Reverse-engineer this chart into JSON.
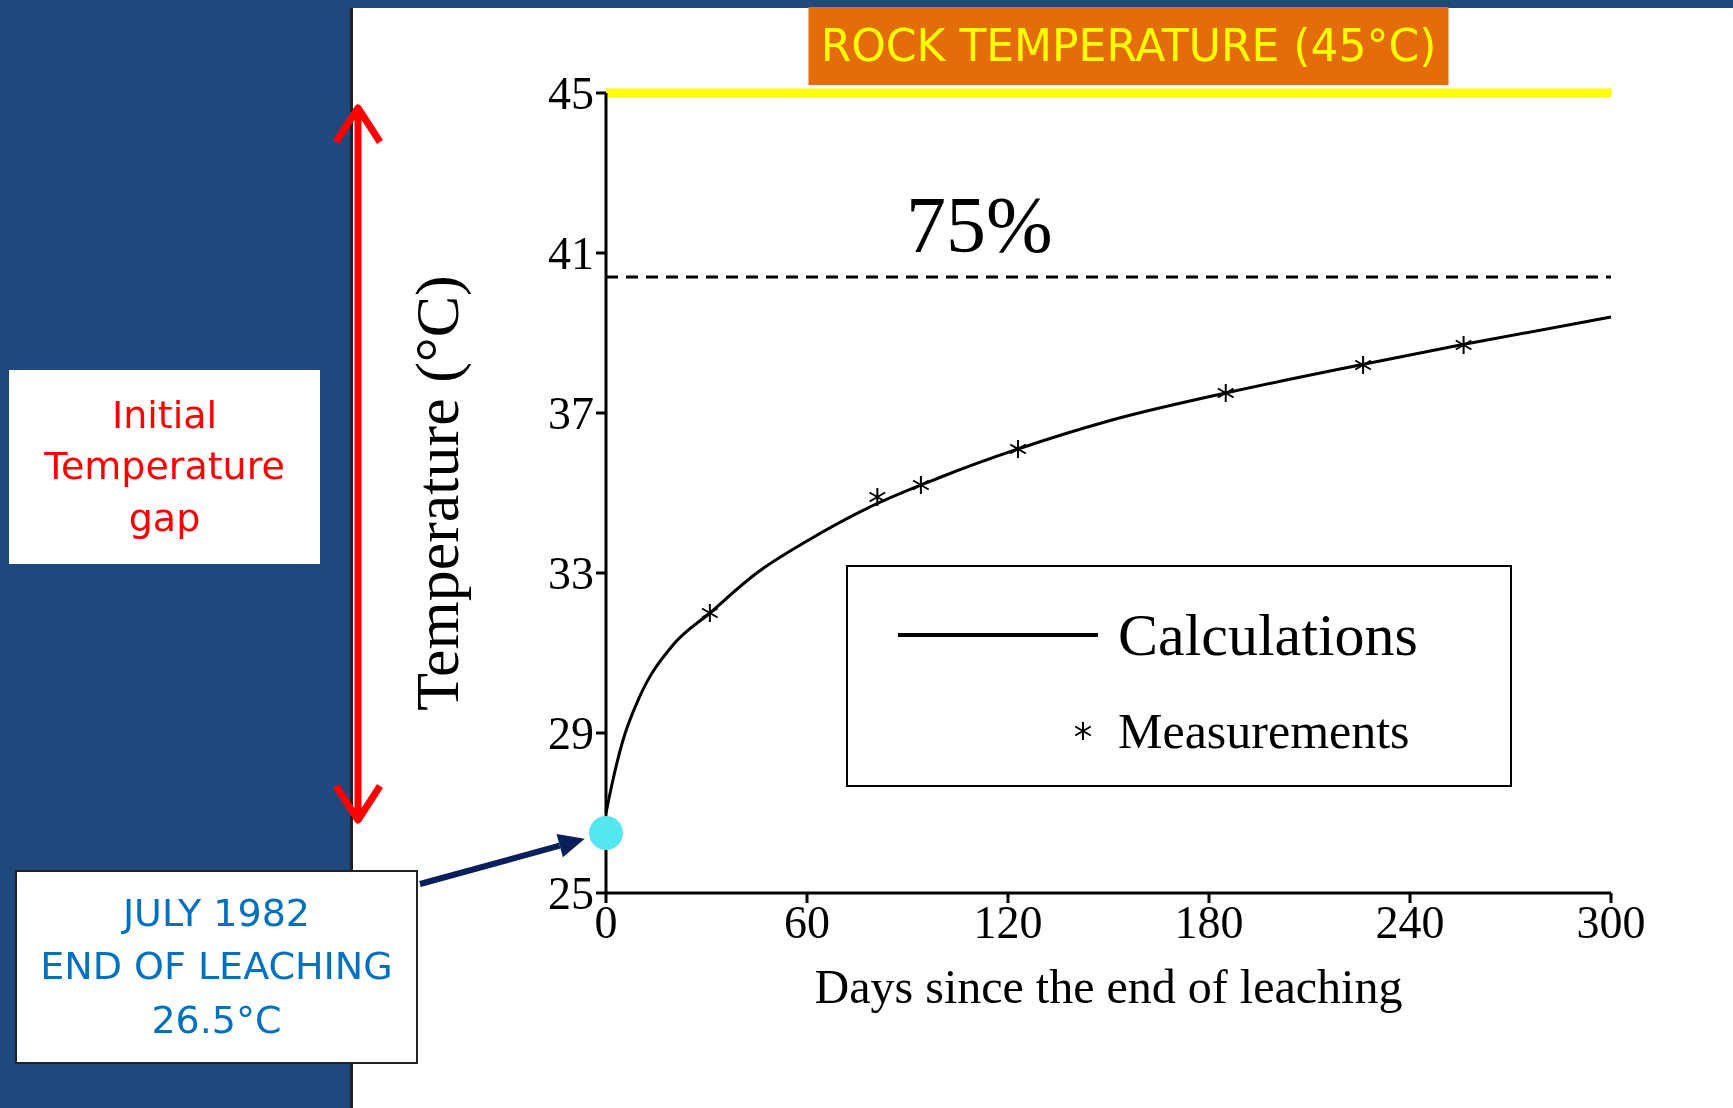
{
  "chart_data": {
    "type": "line",
    "xlabel": "Days since the end of leaching",
    "ylabel": "Temperature (°C)",
    "xlim": [
      0,
      300
    ],
    "xticks": [
      0,
      60,
      120,
      180,
      240,
      300
    ],
    "ylim": [
      25,
      45
    ],
    "yticks": [
      25,
      29,
      33,
      37,
      41,
      45
    ],
    "grid": false,
    "legend": "bottom right",
    "series": [
      {
        "name": "Calculations",
        "type": "line",
        "color": "#000000",
        "marker": "none",
        "line_style": "solid",
        "x": [
          0,
          2,
          5,
          10,
          20,
          31,
          45,
          60,
          80,
          100,
          123,
          150,
          185,
          225,
          255,
          300
        ],
        "values": [
          27.0,
          27.8,
          28.8,
          29.9,
          31.2,
          32.0,
          33.0,
          33.8,
          34.7,
          35.4,
          36.1,
          36.8,
          37.5,
          38.2,
          38.7,
          39.4
        ]
      },
      {
        "name": "Measurements",
        "type": "scatter",
        "color": "#000000",
        "marker": "cross",
        "x": [
          31,
          81,
          94,
          123,
          185,
          226,
          256
        ],
        "values": [
          32.0,
          34.9,
          35.2,
          36.1,
          37.5,
          38.2,
          38.7
        ]
      },
      {
        "type": "scatter",
        "color": "#55e6f0",
        "marker": "circle",
        "x": [
          0
        ],
        "values": [
          26.5
        ]
      }
    ],
    "ref_lines": [
      {
        "axis": "y",
        "value": 45,
        "label": "ROCK TEMPERATURE (45°C)",
        "color": "#ffff00",
        "line_style": "solid"
      },
      {
        "axis": "y",
        "value": 40.4,
        "color": "#000000",
        "line_style": "dashed"
      }
    ],
    "annotations": [
      "Initial Temperature gap",
      "75%",
      "JULY 1982\nEND OF LEACHING\n26.5°C"
    ]
  }
}
